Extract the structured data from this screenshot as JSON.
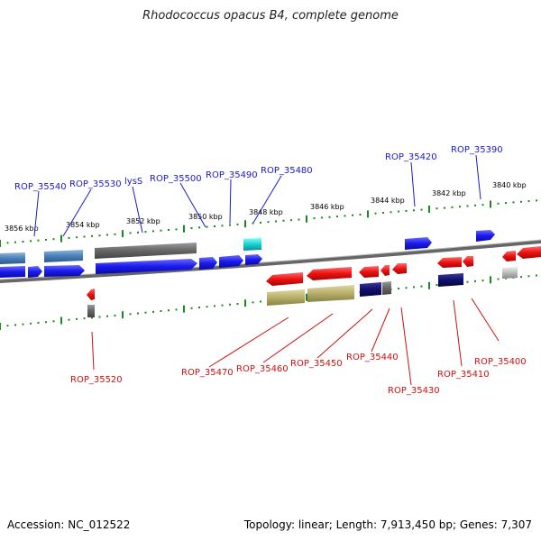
{
  "title": "Rhodococcus opacus B4, complete genome",
  "footer": {
    "accession": "Accession: NC_012522",
    "summary": "Topology: linear; Length: 7,913,450 bp; Genes: 7,307"
  },
  "axis": {
    "unit": "kbp",
    "labels": [
      "3856 kbp",
      "3854 kbp",
      "3852 kbp",
      "3850 kbp",
      "3848 kbp",
      "3846 kbp",
      "3844 kbp",
      "3842 kbp",
      "3840 kbp"
    ]
  },
  "colors": {
    "forward_gene": "#1a1aee",
    "reverse_gene": "#ee1111",
    "top_label": "#1a1acc",
    "bottom_label": "#cc1111",
    "backbone": "#777777",
    "tick": "#1a8a1a"
  },
  "top_genes": [
    {
      "label": "ROP_35540"
    },
    {
      "label": "ROP_35530"
    },
    {
      "label": "lysS"
    },
    {
      "label": "ROP_35500"
    },
    {
      "label": "ROP_35490"
    },
    {
      "label": "ROP_35480"
    },
    {
      "label": "ROP_35420"
    },
    {
      "label": "ROP_35390"
    }
  ],
  "bottom_genes": [
    {
      "label": "ROP_35520"
    },
    {
      "label": "ROP_35470"
    },
    {
      "label": "ROP_35460"
    },
    {
      "label": "ROP_35450"
    },
    {
      "label": "ROP_35440"
    },
    {
      "label": "ROP_35430"
    },
    {
      "label": "ROP_35410"
    },
    {
      "label": "ROP_35400"
    }
  ]
}
